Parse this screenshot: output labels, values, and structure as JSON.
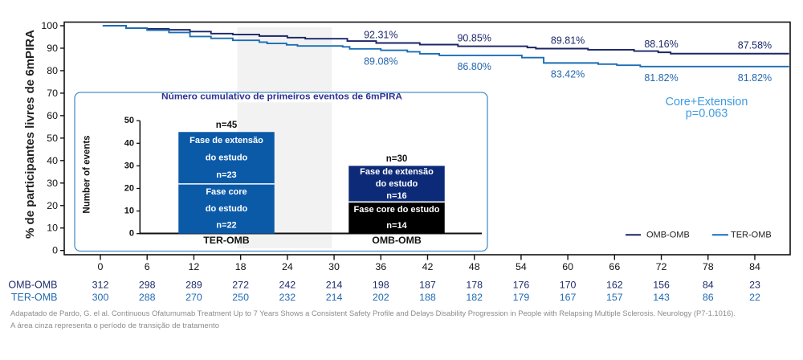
{
  "chart_data": {
    "type": "line",
    "subtype": "kaplan-meier-step",
    "title": "",
    "xlabel": "",
    "ylabel": "% de participantes livres de 6mPIRA",
    "xlim": [
      0,
      88.4
    ],
    "ylim": [
      0,
      100
    ],
    "xticks": [
      0,
      6,
      12,
      18,
      24,
      30,
      36,
      42,
      48,
      54,
      60,
      66,
      72,
      78,
      84
    ],
    "yticks": [
      0,
      10,
      20,
      30,
      40,
      50,
      60,
      70,
      80,
      90,
      100
    ],
    "grid": false,
    "shaded_region": {
      "x_range": [
        18,
        30
      ],
      "color": "#f2f2f2"
    },
    "legend": {
      "placement": "bottom-right",
      "entries": [
        {
          "name": "OMB-OMB",
          "color": "#1a2466"
        },
        {
          "name": "TER-OMB",
          "color": "#1b6db5"
        }
      ]
    },
    "series": [
      {
        "name": "OMB-OMB",
        "color": "#1a2466",
        "label_color": "#1e2a6c",
        "label_position": "above",
        "points": [
          [
            0.3,
            100
          ],
          [
            3.3,
            98.9
          ],
          [
            6.0,
            98.6
          ],
          [
            8.8,
            98.2
          ],
          [
            11.5,
            97.4
          ],
          [
            14.2,
            96.5
          ],
          [
            17.0,
            96.1
          ],
          [
            20.4,
            95.4
          ],
          [
            24.0,
            94.7
          ],
          [
            26.3,
            94.2
          ],
          [
            31.7,
            93.2
          ],
          [
            35.4,
            92.31
          ],
          [
            41.0,
            91.6
          ],
          [
            45.9,
            90.85
          ],
          [
            54.8,
            90.3
          ],
          [
            55.9,
            89.81
          ],
          [
            62.6,
            89.3
          ],
          [
            68.5,
            88.7
          ],
          [
            71.6,
            88.16
          ],
          [
            73.2,
            87.58
          ],
          [
            88.4,
            87.58
          ]
        ],
        "annotations": [
          {
            "x": 36,
            "y": 92.31,
            "text": "92.31%"
          },
          {
            "x": 48,
            "y": 90.85,
            "text": "90.85%"
          },
          {
            "x": 60,
            "y": 89.81,
            "text": "89.81%"
          },
          {
            "x": 72,
            "y": 88.16,
            "text": "88.16%"
          },
          {
            "x": 84,
            "y": 87.58,
            "text": "87.58%"
          }
        ]
      },
      {
        "name": "TER-OMB",
        "color": "#1b6db5",
        "label_color": "#2468ae",
        "label_position": "below",
        "points": [
          [
            0.3,
            100
          ],
          [
            3.3,
            98.9
          ],
          [
            6.0,
            98.0
          ],
          [
            8.8,
            97.0
          ],
          [
            11.5,
            95.2
          ],
          [
            14.2,
            94.4
          ],
          [
            17.0,
            93.5
          ],
          [
            20.4,
            92.7
          ],
          [
            21.4,
            92.1
          ],
          [
            23.9,
            91.5
          ],
          [
            25.3,
            91.0
          ],
          [
            31.1,
            90.6
          ],
          [
            32.0,
            89.7
          ],
          [
            36.0,
            89.08
          ],
          [
            39.4,
            88.4
          ],
          [
            41.0,
            87.5
          ],
          [
            43.5,
            86.8
          ],
          [
            54.1,
            85.8
          ],
          [
            56.9,
            83.42
          ],
          [
            63.9,
            82.9
          ],
          [
            66.3,
            82.4
          ],
          [
            69.3,
            81.82
          ],
          [
            88.4,
            81.82
          ]
        ],
        "annotations": [
          {
            "x": 36,
            "y": 89.08,
            "text": "89.08%"
          },
          {
            "x": 48,
            "y": 86.8,
            "text": "86.80%"
          },
          {
            "x": 60,
            "y": 83.42,
            "text": "83.42%"
          },
          {
            "x": 72,
            "y": 81.82,
            "text": "81.82%"
          },
          {
            "x": 84,
            "y": 81.82,
            "text": "81.82%"
          }
        ]
      }
    ],
    "statistics": {
      "line1": "Core+Extension",
      "line2": "p=0.063",
      "color": "#3d9be0"
    },
    "at_risk": {
      "times": [
        0,
        6,
        12,
        18,
        24,
        30,
        36,
        42,
        48,
        54,
        60,
        66,
        72,
        78,
        84
      ],
      "rows": [
        {
          "name": "OMB-OMB",
          "color": "#1c2a6b",
          "values": [
            312,
            298,
            289,
            272,
            242,
            214,
            198,
            187,
            178,
            176,
            170,
            162,
            156,
            84,
            23
          ]
        },
        {
          "name": "TER-OMB",
          "color": "#1f69b1",
          "values": [
            300,
            288,
            270,
            250,
            232,
            214,
            202,
            188,
            182,
            179,
            167,
            157,
            143,
            86,
            22
          ]
        }
      ]
    },
    "inset": {
      "type": "bar",
      "stacked": true,
      "title": "Número cumulativo de primeiros eventos de 6mPIRA",
      "title_color": "#2e3192",
      "ylabel": "Number of events",
      "ylim": [
        0,
        50
      ],
      "yticks": [
        0,
        10,
        20,
        30,
        40,
        50
      ],
      "categories": [
        "TER-OMB",
        "OMB-OMB"
      ],
      "totals": [
        45,
        30
      ],
      "total_labels": [
        "n=45",
        "n=30"
      ],
      "series": [
        {
          "name": "Fase core do estudo",
          "values": [
            22,
            14
          ],
          "colors": [
            "#0b5aa8",
            "#000000"
          ],
          "labels": [
            [
              "Fase core",
              "do estudo",
              "n=22"
            ],
            [
              "Fase core do estudo",
              "n=14"
            ]
          ]
        },
        {
          "name": "Fase de extensão do estudo",
          "values": [
            23,
            16
          ],
          "colors": [
            "#0b5aa8",
            "#0d2a78"
          ],
          "labels": [
            [
              "Fase de extensão",
              "do estudo",
              "n=23"
            ],
            [
              "Fase de extensão",
              "do estudo",
              "n=16"
            ]
          ]
        }
      ]
    }
  },
  "footnotes": [
    "Adapatado de Pardo, G. el al. Continuous Ofatumumab Treatment Up to 7 Years Shows a Consistent Safety Profile and Delays Disability Progression in People with Relapsing Multiple Sclerosis. Neurology (P7-1.1016).",
    "A área cinza representa o período de transição de tratamento"
  ]
}
